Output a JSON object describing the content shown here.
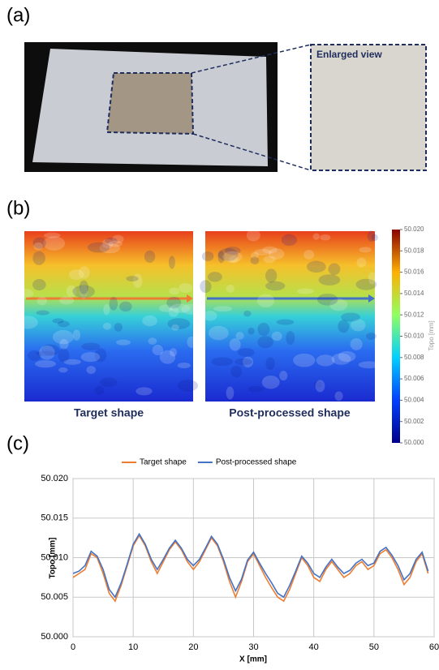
{
  "panel_a": {
    "label": "(a)",
    "inset_title": "Enlarged view"
  },
  "panel_b": {
    "label": "(b)",
    "left_caption": "Target shape",
    "right_caption": "Post-processed shape",
    "colorbar": {
      "label": "Topo [mm]",
      "lim": [
        50.0,
        50.02
      ],
      "ticks": [
        {
          "value": 50.0,
          "label": "50.000"
        },
        {
          "value": 50.002,
          "label": "50.002"
        },
        {
          "value": 50.004,
          "label": "50.004"
        },
        {
          "value": 50.006,
          "label": "50.006"
        },
        {
          "value": 50.008,
          "label": "50.008"
        },
        {
          "value": 50.01,
          "label": "50.010"
        },
        {
          "value": 50.012,
          "label": "50.012"
        },
        {
          "value": 50.014,
          "label": "50.014"
        },
        {
          "value": 50.016,
          "label": "50.016"
        },
        {
          "value": 50.018,
          "label": "50.018"
        },
        {
          "value": 50.02,
          "label": "50.020"
        }
      ]
    }
  },
  "panel_c": {
    "label": "(c)"
  },
  "chart_data": {
    "type": "line",
    "x_label": "X [mm]",
    "y_label": "Topo [mm]",
    "grid": true,
    "x": [
      0,
      1,
      2,
      3,
      4,
      5,
      6,
      7,
      8,
      9,
      10,
      11,
      12,
      13,
      14,
      15,
      16,
      17,
      18,
      19,
      20,
      21,
      22,
      23,
      24,
      25,
      26,
      27,
      28,
      29,
      30,
      31,
      32,
      33,
      34,
      35,
      36,
      37,
      38,
      39,
      40,
      41,
      42,
      43,
      44,
      45,
      46,
      47,
      48,
      49,
      50,
      51,
      52,
      53,
      54,
      55,
      56,
      57,
      58,
      59
    ],
    "xlim": [
      0,
      60
    ],
    "xticks": [
      0,
      10,
      20,
      30,
      40,
      50,
      60
    ],
    "ylim": [
      50.0,
      50.02
    ],
    "yticks": [
      {
        "value": 50.0,
        "label": "50.000"
      },
      {
        "value": 50.005,
        "label": "50.005"
      },
      {
        "value": 50.01,
        "label": "50.010"
      },
      {
        "value": 50.015,
        "label": "50.015"
      },
      {
        "value": 50.02,
        "label": "50.020"
      }
    ],
    "series": [
      {
        "name": "Target shape",
        "color": "#ed7d31",
        "values": [
          50.0075,
          50.008,
          50.0085,
          50.0105,
          50.01,
          50.008,
          50.0055,
          50.0045,
          50.0065,
          50.009,
          50.0115,
          50.0128,
          50.0115,
          50.0095,
          50.008,
          50.0095,
          50.011,
          50.012,
          50.011,
          50.0095,
          50.0085,
          50.0095,
          50.011,
          50.0125,
          50.0115,
          50.0095,
          50.007,
          50.005,
          50.007,
          50.0095,
          50.0105,
          50.009,
          50.0075,
          50.0062,
          50.005,
          50.0045,
          50.006,
          50.008,
          50.01,
          50.009,
          50.0075,
          50.007,
          50.0085,
          50.0095,
          50.0085,
          50.0075,
          50.008,
          50.009,
          50.0095,
          50.0085,
          50.009,
          50.0105,
          50.011,
          50.01,
          50.0085,
          50.0066,
          50.0075,
          50.0095,
          50.0105,
          50.008
        ]
      },
      {
        "name": "Post-processed shape",
        "color": "#4472c4",
        "values": [
          50.008,
          50.0083,
          50.009,
          50.0108,
          50.0102,
          50.0085,
          50.006,
          50.005,
          50.0068,
          50.0092,
          50.0117,
          50.013,
          50.0117,
          50.0098,
          50.0085,
          50.0098,
          50.0112,
          50.0122,
          50.0112,
          50.0098,
          50.009,
          50.0098,
          50.0112,
          50.0127,
          50.0117,
          50.0098,
          50.0075,
          50.0058,
          50.0073,
          50.0097,
          50.0107,
          50.0093,
          50.008,
          50.0068,
          50.0055,
          50.005,
          50.0065,
          50.0083,
          50.0102,
          50.0093,
          50.008,
          50.0075,
          50.0088,
          50.0098,
          50.0088,
          50.008,
          50.0084,
          50.0093,
          50.0098,
          50.009,
          50.0093,
          50.0108,
          50.0113,
          50.0103,
          50.009,
          50.0072,
          50.008,
          50.0098,
          50.0107,
          50.0083
        ]
      }
    ]
  }
}
